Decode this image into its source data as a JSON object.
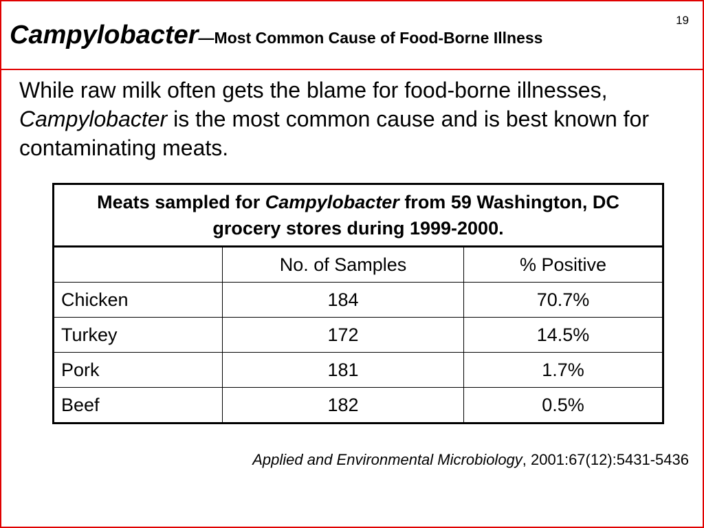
{
  "slide": {
    "page_number": "19",
    "title_main": "Campylobacter",
    "title_sub": "—Most Common Cause of Food-Borne Illness",
    "body": {
      "part1": "While raw milk often gets the blame for food-borne illnesses, ",
      "italic": "Campylobacter",
      "part2": " is the most common cause and is best known for contaminating meats."
    }
  },
  "table": {
    "caption": {
      "part1": "Meats sampled for ",
      "italic": "Campylobacter",
      "part2": " from 59 Washington, DC grocery stores during 1999-2000."
    },
    "headers": [
      "",
      "No. of Samples",
      "% Positive"
    ],
    "rows": [
      {
        "meat": "Chicken",
        "samples": "184",
        "positive": "70.7%"
      },
      {
        "meat": "Turkey",
        "samples": "172",
        "positive": "14.5%"
      },
      {
        "meat": "Pork",
        "samples": "181",
        "positive": "1.7%"
      },
      {
        "meat": "Beef",
        "samples": "182",
        "positive": "0.5%"
      }
    ]
  },
  "citation": {
    "journal": "Applied and Environmental Microbiology",
    "ref": ", 2001:67(12):5431-5436"
  },
  "colors": {
    "frame": "#e00000"
  }
}
